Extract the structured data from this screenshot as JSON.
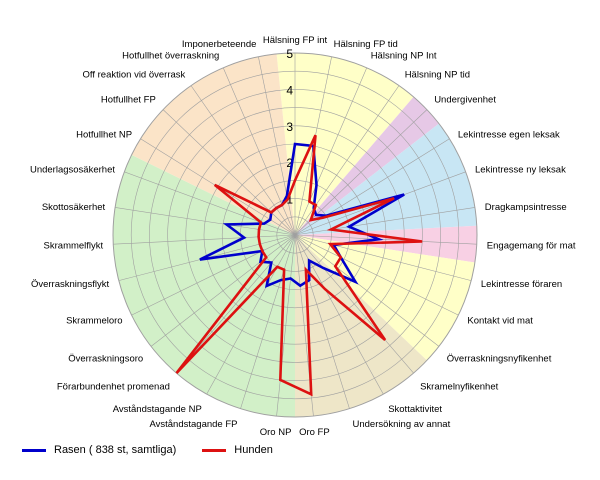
{
  "chart_data": {
    "type": "radar",
    "axis_labels": [
      "Hälsning FP int",
      "Hälsning FP tid",
      "Hälsning NP Int",
      "Hälsning NP tid",
      "Undergivenhet",
      "Lekintresse egen leksak",
      "Lekintresse ny leksak",
      "Dragkampsintresse",
      "Engagemang för mat",
      "Lekintresse föraren",
      "Kontakt vid mat",
      "Överraskningsnyfikenhet",
      "Skramelnyfikenhet",
      "Skottaktivitet",
      "Undersökning av annat",
      "Oro FP",
      "Oro NP",
      "Avståndstagande FP",
      "Avståndstagande NP",
      "Förarbundenhet promenad",
      "Överraskningsoro",
      "Skrammeloro",
      "Överraskningsflykt",
      "Skrammelflykt",
      "Skottosäkerhet",
      "Underlagsosäkerhet",
      "Hotfullhet NP",
      "Hotfullhet FP",
      "Off reaktion vid överrask",
      "Hotfullhet överraskning",
      "Imponerbeteende"
    ],
    "rlim": [
      0,
      5
    ],
    "tick_labels": [
      "1",
      "2",
      "3",
      "4",
      "5"
    ],
    "gridlines": true,
    "sectors": [
      {
        "start": 0,
        "end": 3,
        "color": "#ffffc8"
      },
      {
        "start": 4,
        "end": 4,
        "color": "#e6c8e6"
      },
      {
        "start": 5,
        "end": 7,
        "color": "#c8e6f4"
      },
      {
        "start": 8,
        "end": 8,
        "color": "#f8d0e4"
      },
      {
        "start": 9,
        "end": 11,
        "color": "#ffffc8"
      },
      {
        "start": 12,
        "end": 15,
        "color": "#eee6c8"
      },
      {
        "start": 16,
        "end": 25,
        "color": "#d2f0c8"
      },
      {
        "start": 26,
        "end": 30,
        "color": "#fbe4c8"
      }
    ],
    "series": [
      {
        "name": "Rasen ( 838 st, samtliga)",
        "color": "#0000cc",
        "values": [
          2.5,
          2.5,
          1.5,
          0.9,
          0.8,
          1.0,
          3.2,
          1.5,
          2.3,
          1.1,
          1.4,
          2.1,
          1.2,
          0.8,
          1.3,
          1.4,
          1.2,
          1.3,
          1.6,
          1.0,
          1.2,
          1.0,
          2.7,
          1.4,
          1.9,
          0.9,
          0.8,
          0.9,
          0.9,
          0.9,
          1.1
        ]
      },
      {
        "name": "Hunden",
        "color": "#dd1111",
        "values": [
          1.5,
          2.8,
          1.0,
          1.0,
          0.6,
          0.9,
          2.9,
          1.0,
          3.5,
          1.0,
          1.4,
          1.4,
          3.8,
          1.7,
          1.0,
          4.4,
          4.0,
          1.0,
          1.0,
          5.0,
          1.0,
          1.0,
          1.0,
          1.0,
          1.0,
          1.0,
          2.6,
          0.9,
          0.9,
          0.9,
          1.0
        ]
      }
    ]
  }
}
